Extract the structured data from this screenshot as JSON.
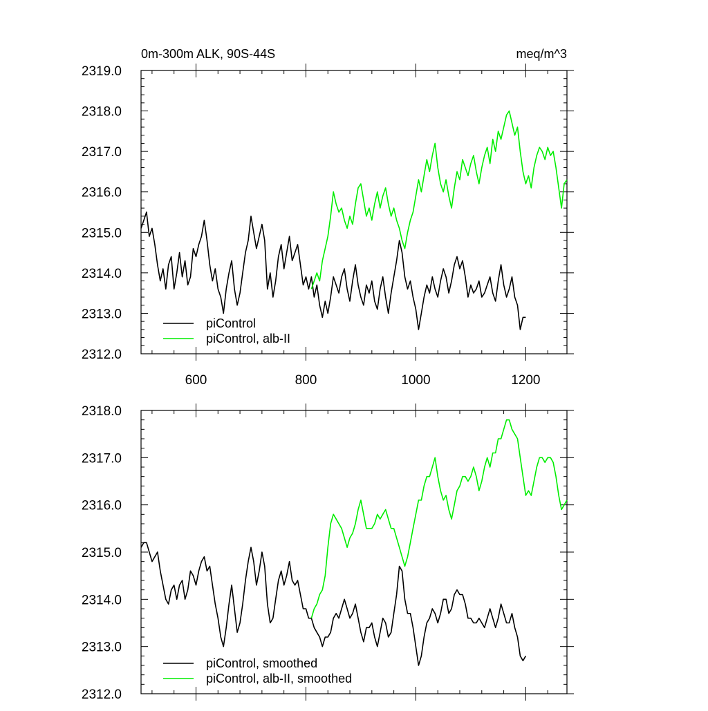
{
  "chart_data": [
    {
      "type": "line",
      "title": "0m-300m ALK, 90S-44S",
      "units_label": "meq/m^3",
      "xlim": [
        500,
        1275
      ],
      "ylim": [
        2312.0,
        2319.0
      ],
      "xticks": [
        600,
        800,
        1000,
        1200
      ],
      "xtick_labels": [
        "600",
        "800",
        "1000",
        "1200"
      ],
      "yticks": [
        2312.0,
        2313.0,
        2314.0,
        2315.0,
        2316.0,
        2317.0,
        2318.0,
        2319.0
      ],
      "ytick_labels": [
        "2312.0",
        "2313.0",
        "2314.0",
        "2315.0",
        "2316.0",
        "2317.0",
        "2318.0",
        "2319.0"
      ],
      "grid": false,
      "legend_position": "bottom-left",
      "series": [
        {
          "name": "piControl",
          "color": "#000000",
          "x": [
            500,
            505,
            510,
            515,
            520,
            525,
            530,
            535,
            540,
            545,
            550,
            555,
            560,
            565,
            570,
            575,
            580,
            585,
            590,
            595,
            600,
            605,
            610,
            615,
            620,
            625,
            630,
            635,
            640,
            645,
            650,
            655,
            660,
            665,
            670,
            675,
            680,
            685,
            690,
            695,
            700,
            705,
            710,
            715,
            720,
            725,
            730,
            735,
            740,
            745,
            750,
            755,
            760,
            765,
            770,
            775,
            780,
            785,
            790,
            795,
            800,
            805,
            810,
            815,
            820,
            825,
            830,
            835,
            840,
            845,
            850,
            855,
            860,
            865,
            870,
            875,
            880,
            885,
            890,
            895,
            900,
            905,
            910,
            915,
            920,
            925,
            930,
            935,
            940,
            945,
            950,
            955,
            960,
            965,
            970,
            975,
            980,
            985,
            990,
            995,
            1000,
            1005,
            1010,
            1015,
            1020,
            1025,
            1030,
            1035,
            1040,
            1045,
            1050,
            1055,
            1060,
            1065,
            1070,
            1075,
            1080,
            1085,
            1090,
            1095,
            1100,
            1105,
            1110,
            1115,
            1120,
            1125,
            1130,
            1135,
            1140,
            1145,
            1150,
            1155,
            1160,
            1165,
            1170,
            1175,
            1180,
            1185,
            1190,
            1195,
            1200
          ],
          "y": [
            2315.1,
            2315.3,
            2315.5,
            2314.9,
            2315.1,
            2314.7,
            2314.2,
            2313.8,
            2314.1,
            2313.6,
            2314.2,
            2314.4,
            2313.6,
            2314.0,
            2314.5,
            2313.9,
            2314.3,
            2313.7,
            2313.9,
            2314.6,
            2314.4,
            2314.7,
            2314.9,
            2315.3,
            2314.8,
            2314.2,
            2313.8,
            2314.1,
            2313.6,
            2313.4,
            2313.0,
            2313.6,
            2314.0,
            2314.3,
            2313.6,
            2313.2,
            2313.5,
            2314.0,
            2314.5,
            2314.8,
            2315.4,
            2315.0,
            2314.6,
            2314.9,
            2315.2,
            2314.8,
            2313.6,
            2314.0,
            2313.4,
            2313.8,
            2314.4,
            2314.7,
            2314.1,
            2314.5,
            2314.9,
            2314.3,
            2314.5,
            2314.7,
            2314.2,
            2313.7,
            2313.9,
            2313.6,
            2313.9,
            2313.4,
            2313.7,
            2313.2,
            2312.9,
            2313.3,
            2313.0,
            2313.4,
            2313.9,
            2313.7,
            2313.5,
            2313.9,
            2314.1,
            2313.6,
            2313.3,
            2313.8,
            2314.2,
            2313.7,
            2313.4,
            2313.2,
            2313.7,
            2313.5,
            2313.8,
            2313.3,
            2313.1,
            2313.6,
            2313.9,
            2313.4,
            2313.0,
            2313.5,
            2313.9,
            2314.3,
            2314.8,
            2314.5,
            2313.9,
            2313.6,
            2313.8,
            2313.4,
            2313.1,
            2312.6,
            2313.0,
            2313.4,
            2313.7,
            2313.5,
            2313.9,
            2313.6,
            2313.4,
            2313.8,
            2314.1,
            2313.9,
            2313.5,
            2313.8,
            2314.2,
            2314.4,
            2314.1,
            2314.3,
            2313.9,
            2313.4,
            2313.7,
            2313.5,
            2313.6,
            2313.8,
            2313.4,
            2313.5,
            2313.7,
            2313.9,
            2313.5,
            2313.3,
            2313.8,
            2314.2,
            2313.7,
            2313.4,
            2313.6,
            2313.9,
            2313.4,
            2313.2,
            2312.6,
            2312.9,
            2312.9
          ]
        },
        {
          "name": "piControl, alb-II",
          "color": "#00ee00",
          "x": [
            810,
            815,
            820,
            825,
            830,
            835,
            840,
            845,
            850,
            855,
            860,
            865,
            870,
            875,
            880,
            885,
            890,
            895,
            900,
            905,
            910,
            915,
            920,
            925,
            930,
            935,
            940,
            945,
            950,
            955,
            960,
            965,
            970,
            975,
            980,
            985,
            990,
            995,
            1000,
            1005,
            1010,
            1015,
            1020,
            1025,
            1030,
            1035,
            1040,
            1045,
            1050,
            1055,
            1060,
            1065,
            1070,
            1075,
            1080,
            1085,
            1090,
            1095,
            1100,
            1105,
            1110,
            1115,
            1120,
            1125,
            1130,
            1135,
            1140,
            1145,
            1150,
            1155,
            1160,
            1165,
            1170,
            1175,
            1180,
            1185,
            1190,
            1195,
            1200,
            1205,
            1210,
            1215,
            1220,
            1225,
            1230,
            1235,
            1240,
            1245,
            1250,
            1255,
            1260,
            1265,
            1270,
            1275
          ],
          "y": [
            2313.6,
            2313.8,
            2314.0,
            2313.8,
            2314.3,
            2314.6,
            2314.9,
            2315.4,
            2316.0,
            2315.7,
            2315.5,
            2315.6,
            2315.3,
            2315.1,
            2315.4,
            2315.2,
            2315.7,
            2316.1,
            2316.2,
            2315.8,
            2315.4,
            2315.6,
            2315.3,
            2315.7,
            2316.0,
            2315.6,
            2315.9,
            2316.1,
            2315.7,
            2315.4,
            2315.6,
            2315.3,
            2315.1,
            2314.8,
            2314.6,
            2315.0,
            2315.3,
            2315.5,
            2315.9,
            2316.3,
            2316.0,
            2316.4,
            2316.8,
            2316.5,
            2316.9,
            2317.2,
            2316.6,
            2316.2,
            2316.0,
            2316.3,
            2315.9,
            2315.6,
            2316.1,
            2316.5,
            2316.3,
            2316.8,
            2316.6,
            2316.4,
            2316.7,
            2316.9,
            2316.5,
            2316.2,
            2316.6,
            2316.9,
            2317.1,
            2316.7,
            2317.3,
            2317.0,
            2317.5,
            2317.3,
            2317.6,
            2317.9,
            2318.0,
            2317.7,
            2317.4,
            2317.6,
            2317.0,
            2316.5,
            2316.2,
            2316.4,
            2316.1,
            2316.6,
            2316.9,
            2317.1,
            2317.0,
            2316.8,
            2317.1,
            2316.9,
            2317.0,
            2316.6,
            2316.1,
            2315.6,
            2316.2,
            2316.3
          ]
        }
      ]
    },
    {
      "type": "line",
      "xlim": [
        500,
        1275
      ],
      "ylim": [
        2312.0,
        2318.0
      ],
      "xticks": [
        600,
        800,
        1000,
        1200
      ],
      "xtick_labels": [],
      "yticks": [
        2312.0,
        2313.0,
        2314.0,
        2315.0,
        2316.0,
        2317.0,
        2318.0
      ],
      "ytick_labels": [
        "2312.0",
        "2313.0",
        "2314.0",
        "2315.0",
        "2316.0",
        "2317.0",
        "2318.0"
      ],
      "grid": false,
      "legend_position": "bottom-left",
      "series": [
        {
          "name": "piControl, smoothed",
          "color": "#000000",
          "x": [
            500,
            505,
            510,
            515,
            520,
            525,
            530,
            535,
            540,
            545,
            550,
            555,
            560,
            565,
            570,
            575,
            580,
            585,
            590,
            595,
            600,
            605,
            610,
            615,
            620,
            625,
            630,
            635,
            640,
            645,
            650,
            655,
            660,
            665,
            670,
            675,
            680,
            685,
            690,
            695,
            700,
            705,
            710,
            715,
            720,
            725,
            730,
            735,
            740,
            745,
            750,
            755,
            760,
            765,
            770,
            775,
            780,
            785,
            790,
            795,
            800,
            805,
            810,
            815,
            820,
            825,
            830,
            835,
            840,
            845,
            850,
            855,
            860,
            865,
            870,
            875,
            880,
            885,
            890,
            895,
            900,
            905,
            910,
            915,
            920,
            925,
            930,
            935,
            940,
            945,
            950,
            955,
            960,
            965,
            970,
            975,
            980,
            985,
            990,
            995,
            1000,
            1005,
            1010,
            1015,
            1020,
            1025,
            1030,
            1035,
            1040,
            1045,
            1050,
            1055,
            1060,
            1065,
            1070,
            1075,
            1080,
            1085,
            1090,
            1095,
            1100,
            1105,
            1110,
            1115,
            1120,
            1125,
            1130,
            1135,
            1140,
            1145,
            1150,
            1155,
            1160,
            1165,
            1170,
            1175,
            1180,
            1185,
            1190,
            1195,
            1200
          ],
          "y": [
            2315.1,
            2315.2,
            2315.2,
            2315.0,
            2314.8,
            2314.9,
            2315.0,
            2314.6,
            2314.3,
            2314.0,
            2313.9,
            2314.2,
            2314.3,
            2314.0,
            2314.3,
            2314.4,
            2314.0,
            2314.2,
            2314.6,
            2314.5,
            2314.3,
            2314.6,
            2314.8,
            2314.9,
            2314.6,
            2314.7,
            2314.3,
            2313.9,
            2313.6,
            2313.2,
            2313.0,
            2313.4,
            2313.9,
            2314.3,
            2313.8,
            2313.3,
            2313.5,
            2313.9,
            2314.4,
            2314.8,
            2315.1,
            2314.8,
            2314.3,
            2314.6,
            2315.0,
            2314.7,
            2313.9,
            2313.5,
            2313.6,
            2314.0,
            2314.4,
            2314.6,
            2314.3,
            2314.5,
            2314.8,
            2314.4,
            2314.3,
            2314.4,
            2314.1,
            2313.8,
            2313.8,
            2313.6,
            2313.6,
            2313.4,
            2313.3,
            2313.2,
            2313.0,
            2313.2,
            2313.2,
            2313.3,
            2313.6,
            2313.7,
            2313.6,
            2313.8,
            2314.0,
            2313.8,
            2313.6,
            2313.7,
            2313.9,
            2313.6,
            2313.3,
            2313.1,
            2313.4,
            2313.4,
            2313.5,
            2313.2,
            2313.0,
            2313.3,
            2313.6,
            2313.5,
            2313.2,
            2313.3,
            2313.7,
            2314.1,
            2314.7,
            2314.6,
            2314.0,
            2313.7,
            2313.7,
            2313.4,
            2313.0,
            2312.6,
            2312.8,
            2313.2,
            2313.5,
            2313.6,
            2313.8,
            2313.7,
            2313.5,
            2313.7,
            2314.0,
            2314.0,
            2313.7,
            2313.8,
            2314.1,
            2314.2,
            2314.1,
            2314.1,
            2313.9,
            2313.6,
            2313.6,
            2313.5,
            2313.5,
            2313.6,
            2313.5,
            2313.4,
            2313.6,
            2313.8,
            2313.6,
            2313.4,
            2313.6,
            2313.9,
            2313.7,
            2313.5,
            2313.5,
            2313.7,
            2313.4,
            2313.2,
            2312.8,
            2312.7,
            2312.8
          ]
        },
        {
          "name": "piControl, alb-II, smoothed",
          "color": "#00ee00",
          "x": [
            810,
            815,
            820,
            825,
            830,
            835,
            840,
            845,
            850,
            855,
            860,
            865,
            870,
            875,
            880,
            885,
            890,
            895,
            900,
            905,
            910,
            915,
            920,
            925,
            930,
            935,
            940,
            945,
            950,
            955,
            960,
            965,
            970,
            975,
            980,
            985,
            990,
            995,
            1000,
            1005,
            1010,
            1015,
            1020,
            1025,
            1030,
            1035,
            1040,
            1045,
            1050,
            1055,
            1060,
            1065,
            1070,
            1075,
            1080,
            1085,
            1090,
            1095,
            1100,
            1105,
            1110,
            1115,
            1120,
            1125,
            1130,
            1135,
            1140,
            1145,
            1150,
            1155,
            1160,
            1165,
            1170,
            1175,
            1180,
            1185,
            1190,
            1195,
            1200,
            1205,
            1210,
            1215,
            1220,
            1225,
            1230,
            1235,
            1240,
            1245,
            1250,
            1255,
            1260,
            1265,
            1270,
            1275
          ],
          "y": [
            2313.6,
            2313.8,
            2313.9,
            2314.1,
            2314.2,
            2314.5,
            2315.1,
            2315.6,
            2315.8,
            2315.7,
            2315.6,
            2315.5,
            2315.3,
            2315.1,
            2315.3,
            2315.4,
            2315.6,
            2315.9,
            2316.1,
            2315.8,
            2315.5,
            2315.5,
            2315.5,
            2315.6,
            2315.8,
            2315.7,
            2315.8,
            2315.9,
            2315.7,
            2315.5,
            2315.5,
            2315.3,
            2315.1,
            2314.9,
            2314.7,
            2314.9,
            2315.2,
            2315.5,
            2315.8,
            2316.1,
            2316.1,
            2316.4,
            2316.6,
            2316.6,
            2316.8,
            2317.0,
            2316.6,
            2316.3,
            2316.1,
            2316.2,
            2315.9,
            2315.7,
            2316.0,
            2316.3,
            2316.4,
            2316.6,
            2316.6,
            2316.5,
            2316.6,
            2316.8,
            2316.6,
            2316.3,
            2316.5,
            2316.8,
            2317.0,
            2316.8,
            2317.1,
            2317.1,
            2317.4,
            2317.4,
            2317.6,
            2317.8,
            2317.8,
            2317.6,
            2317.5,
            2317.4,
            2317.0,
            2316.6,
            2316.2,
            2316.3,
            2316.2,
            2316.5,
            2316.8,
            2317.0,
            2317.0,
            2316.9,
            2317.0,
            2317.0,
            2316.9,
            2316.6,
            2316.2,
            2315.9,
            2316.0,
            2316.1
          ]
        }
      ]
    }
  ]
}
